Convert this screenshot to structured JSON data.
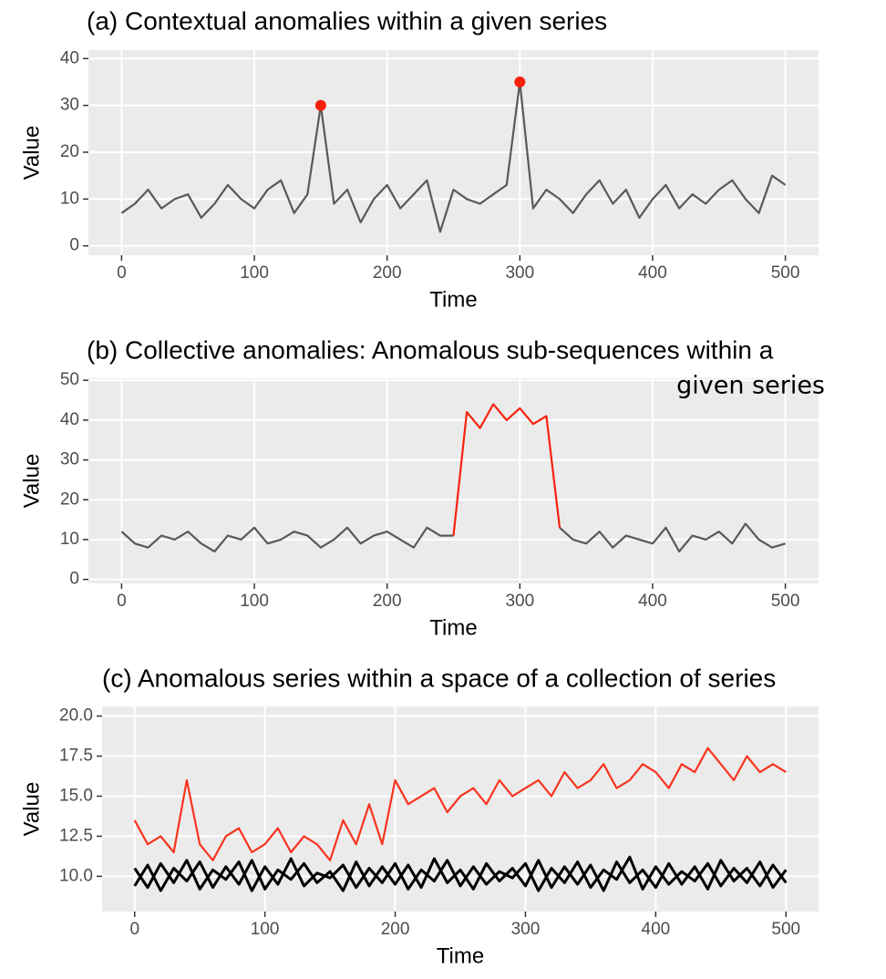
{
  "chart_data": [
    {
      "type": "line",
      "title": [
        "(a) Contextual anomalies within a  given series"
      ],
      "xlabel": "Time",
      "ylabel": "Value",
      "x": [
        0,
        10,
        20,
        30,
        40,
        50,
        60,
        70,
        80,
        90,
        100,
        110,
        120,
        130,
        140,
        150,
        160,
        170,
        180,
        190,
        200,
        210,
        220,
        230,
        240,
        250,
        260,
        270,
        280,
        290,
        300,
        310,
        320,
        330,
        340,
        350,
        360,
        370,
        380,
        390,
        400,
        410,
        420,
        430,
        440,
        450,
        460,
        470,
        480,
        490,
        500
      ],
      "series": [
        {
          "color": "#595959",
          "values": [
            7,
            9,
            12,
            8,
            10,
            11,
            6,
            9,
            13,
            10,
            8,
            12,
            14,
            7,
            11,
            30,
            9,
            12,
            5,
            10,
            13,
            8,
            11,
            14,
            3,
            12,
            10,
            9,
            11,
            13,
            35,
            8,
            12,
            10,
            7,
            11,
            14,
            9,
            12,
            6,
            10,
            13,
            8,
            11,
            9,
            12,
            14,
            10,
            7,
            15,
            13
          ]
        }
      ],
      "points": {
        "color": "#f8210e",
        "x": [
          150,
          300
        ],
        "values": [
          30,
          35
        ]
      },
      "xlim": [
        -25,
        525
      ],
      "ylim": [
        -2,
        41.8
      ],
      "xticks": [
        0,
        100,
        200,
        300,
        400,
        500
      ],
      "yticks": [
        0,
        10,
        20,
        30,
        40
      ],
      "grid": true
    },
    {
      "type": "line",
      "title": [
        "(b) Collective anomalies: Anomalous sub-sequences within a",
        "given series"
      ],
      "xlabel": "Time",
      "ylabel": "Value",
      "x": [
        0,
        10,
        20,
        30,
        40,
        50,
        60,
        70,
        80,
        90,
        100,
        110,
        120,
        130,
        140,
        150,
        160,
        170,
        180,
        190,
        200,
        210,
        220,
        230,
        240,
        250,
        260,
        270,
        280,
        290,
        300,
        310,
        320,
        330,
        340,
        350,
        360,
        370,
        380,
        390,
        400,
        410,
        420,
        430,
        440,
        450,
        460,
        470,
        480,
        490,
        500
      ],
      "series": [
        {
          "color": "#595959",
          "values": [
            12,
            9,
            8,
            11,
            10,
            12,
            9,
            7,
            11,
            10,
            13,
            9,
            10,
            12,
            11,
            8,
            10,
            13,
            9,
            11,
            12,
            10,
            8,
            13,
            11,
            11,
            null,
            null,
            null,
            null,
            null,
            null,
            null,
            13,
            10,
            9,
            12,
            8,
            11,
            10,
            9,
            13,
            7,
            11,
            10,
            12,
            9,
            14,
            10,
            8,
            9
          ]
        },
        {
          "color": "#f8210e",
          "values": [
            null,
            null,
            null,
            null,
            null,
            null,
            null,
            null,
            null,
            null,
            null,
            null,
            null,
            null,
            null,
            null,
            null,
            null,
            null,
            null,
            null,
            null,
            null,
            null,
            null,
            11,
            42,
            38,
            44,
            40,
            43,
            39,
            41,
            13,
            null,
            null,
            null,
            null,
            null,
            null,
            null,
            null,
            null,
            null,
            null,
            null,
            null,
            null,
            null,
            null,
            null
          ]
        }
      ],
      "xlim": [
        -25,
        525
      ],
      "ylim": [
        -1,
        50.5
      ],
      "xticks": [
        0,
        100,
        200,
        300,
        400,
        500
      ],
      "yticks": [
        0,
        10,
        20,
        30,
        40,
        50
      ],
      "grid": true
    },
    {
      "type": "line",
      "title": [
        "(c) Anomalous series within a space of a collection of series"
      ],
      "xlabel": "Time",
      "ylabel": "Value",
      "x": [
        0,
        10,
        20,
        30,
        40,
        50,
        60,
        70,
        80,
        90,
        100,
        110,
        120,
        130,
        140,
        150,
        160,
        170,
        180,
        190,
        200,
        210,
        220,
        230,
        240,
        250,
        260,
        270,
        280,
        290,
        300,
        310,
        320,
        330,
        340,
        350,
        360,
        370,
        380,
        390,
        400,
        410,
        420,
        430,
        440,
        450,
        460,
        470,
        480,
        490,
        500
      ],
      "series": [
        {
          "color": "#000000",
          "values": [
            10.5,
            9.3,
            10.8,
            9.6,
            11,
            9.2,
            10.4,
            9.8,
            10.9,
            9.1,
            10.6,
            9.5,
            11.1,
            9.4,
            10.2,
            9.9,
            10.7,
            9.3,
            10.5,
            9.6,
            10.8,
            9.2,
            10.4,
            9.7,
            11,
            9.4,
            10.6,
            9.5,
            10.3,
            9.9,
            10.8,
            9.1,
            10.5,
            9.6,
            10.9,
            9.3,
            10.4,
            9.8,
            11.2,
            9.2,
            10.6,
            9.5,
            10.3,
            9.7,
            10.8,
            9.4,
            10.5,
            9.6,
            10.9,
            9.3,
            10.4
          ]
        },
        {
          "color": "#000000",
          "values": [
            9.4,
            10.7,
            9.1,
            10.5,
            9.7,
            10.9,
            9.3,
            10.6,
            9.5,
            11,
            9.2,
            10.4,
            9.8,
            10.8,
            9.6,
            10.3,
            9.1,
            10.9,
            9.4,
            10.6,
            9.5,
            10.7,
            9.3,
            11.1,
            9.6,
            10.4,
            9.2,
            10.8,
            9.7,
            10.5,
            9.4,
            11,
            9.3,
            10.6,
            9.5,
            10.7,
            9.1,
            10.9,
            9.6,
            10.4,
            9.3,
            10.8,
            9.5,
            10.6,
            9.2,
            11,
            9.7,
            10.5,
            9.4,
            10.7,
            9.6
          ]
        },
        {
          "color": "#f8341e",
          "values": [
            13.5,
            12,
            12.5,
            11.5,
            16,
            12,
            11,
            12.5,
            13,
            11.5,
            12,
            13,
            11.5,
            12.5,
            12,
            11,
            13.5,
            12,
            14.5,
            12,
            16,
            14.5,
            15,
            15.5,
            14,
            15,
            15.5,
            14.5,
            16,
            15,
            15.5,
            16,
            15,
            16.5,
            15.5,
            16,
            17,
            15.5,
            16,
            17,
            16.5,
            15.5,
            17,
            16.5,
            18,
            17,
            16,
            17.5,
            16.5,
            17,
            16.5
          ]
        }
      ],
      "xlim": [
        -25,
        525
      ],
      "ylim": [
        7.8,
        20.6
      ],
      "xticks": [
        0,
        100,
        200,
        300,
        400,
        500
      ],
      "yticks": [
        {
          "value": 10,
          "label": "10.0"
        },
        12.5,
        {
          "value": 15,
          "label": "15.0"
        },
        17.5,
        {
          "value": 20,
          "label": "20.0"
        }
      ],
      "grid": true
    }
  ]
}
